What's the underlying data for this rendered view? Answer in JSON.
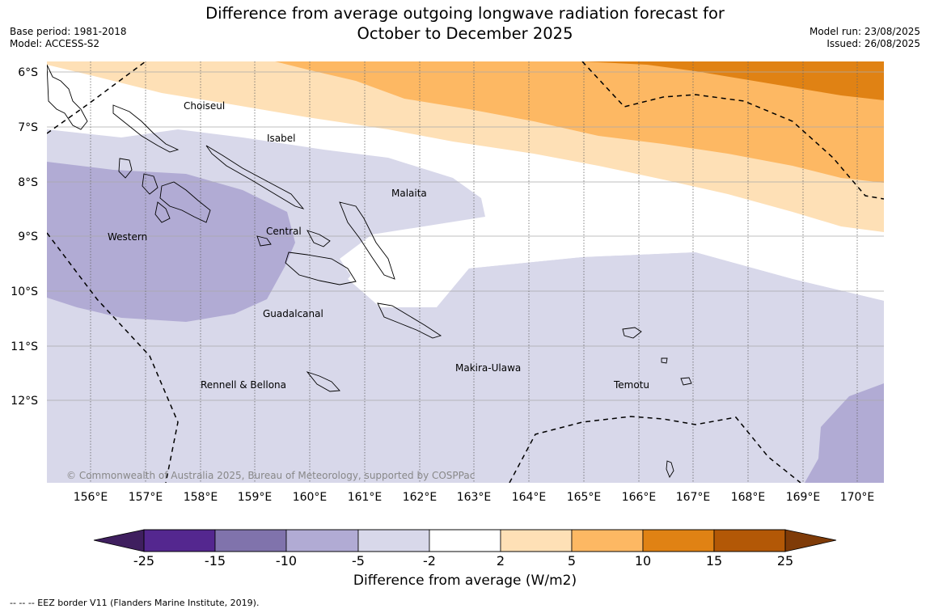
{
  "title_line1": "Difference from average outgoing longwave radiation forecast for",
  "title_line2": "October to December 2025",
  "meta_left": {
    "base_period": "Base period: 1981-2018",
    "model": "Model: ACCESS-S2"
  },
  "meta_right": {
    "model_run": "Model run: 23/08/2025",
    "issued": "Issued: 26/08/2025"
  },
  "map": {
    "lat_labels": [
      "6°S",
      "7°S",
      "8°S",
      "9°S",
      "10°S",
      "11°S",
      "12°S"
    ],
    "lon_labels": [
      "156°E",
      "157°E",
      "158°E",
      "159°E",
      "160°E",
      "161°E",
      "162°E",
      "163°E",
      "164°E",
      "165°E",
      "166°E",
      "167°E",
      "168°E",
      "169°E",
      "170°E"
    ],
    "regions": [
      "Choiseul",
      "Isabel",
      "Malaita",
      "Western",
      "Central",
      "Guadalcanal",
      "Makira-Ulawa",
      "Temotu",
      "Rennell & Bellona"
    ],
    "copyright": "© Commonwealth of Australia 2025, Bureau of Meteorology, supported by COSPPac"
  },
  "colorbar": {
    "title": "Difference from average (W/m2)",
    "ticks": [
      "-25",
      "-15",
      "-10",
      "-5",
      "-2",
      "2",
      "5",
      "10",
      "15",
      "25"
    ],
    "colors": [
      "#3f1f5f",
      "#54278f",
      "#8073ac",
      "#b1abd4",
      "#d8d8ea",
      "#ffffff",
      "#fee0b6",
      "#fdb863",
      "#e08214",
      "#b35806",
      "#7f3b08"
    ]
  },
  "eez_note": "--  --  -- EEZ border V11 (Flanders Marine Institute, 2019)."
}
